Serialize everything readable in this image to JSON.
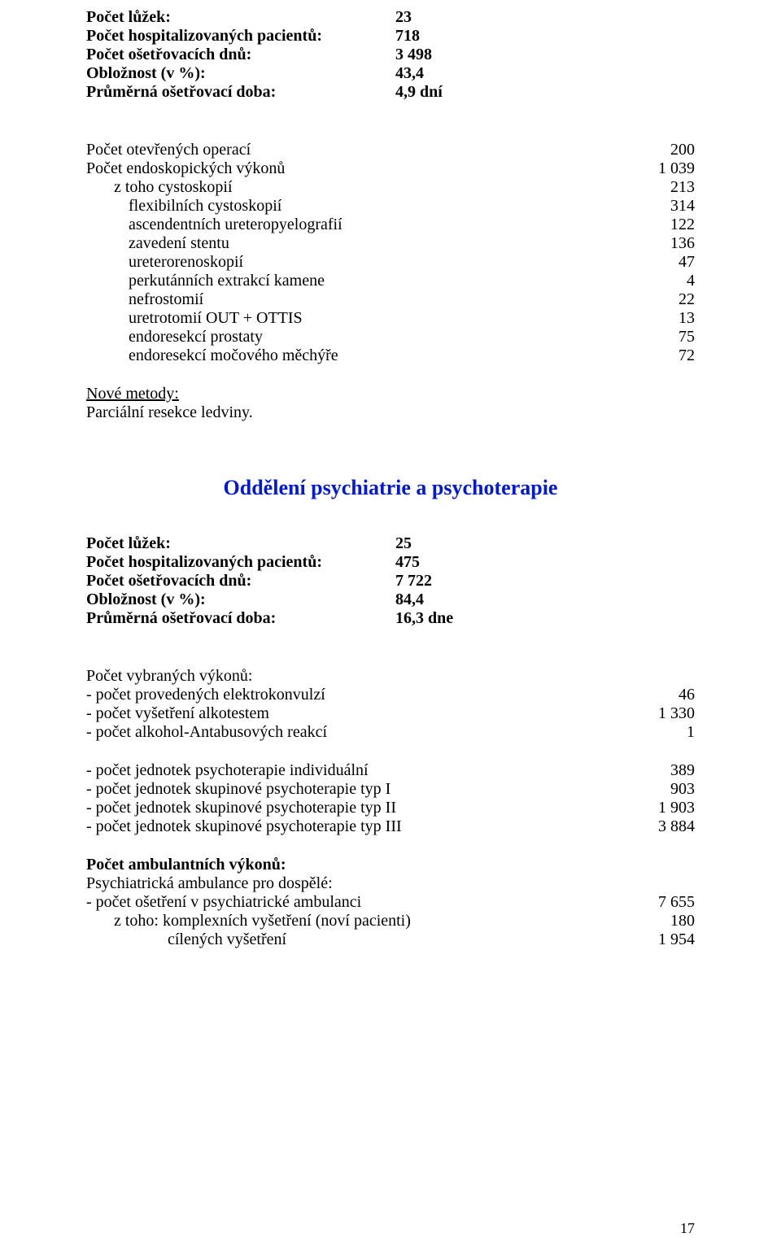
{
  "stats1": {
    "beds_label": "Počet lůžek:",
    "beds_value": "23",
    "hosp_label": "Počet hospitalizovaných pacientů:",
    "hosp_value": "718",
    "days_label": "Počet ošetřovacích dnů:",
    "days_value": "3 498",
    "occ_label": "Obložnost (v %):",
    "occ_value": "43,4",
    "avg_label": "Průměrná ošetřovací doba:",
    "avg_value": "4,9 dní"
  },
  "procs": {
    "open_label": "Počet otevřených operací",
    "open_value": "200",
    "endo_label": "Počet endoskopických  výkonů",
    "endo_value": "1 039",
    "items": [
      {
        "label": "z toho cystoskopií",
        "value": "213",
        "indent": "indent1"
      },
      {
        "label": "flexibilních cystoskopií",
        "value": "314",
        "indent": "indent2"
      },
      {
        "label": "ascendentních ureteropyelografií",
        "value": "122",
        "indent": "indent2"
      },
      {
        "label": "zavedení stentu",
        "value": "136",
        "indent": "indent2"
      },
      {
        "label": "ureterorenoskopií",
        "value": "47",
        "indent": "indent2"
      },
      {
        "label": "perkutánních extrakcí kamene",
        "value": "4",
        "indent": "indent2"
      },
      {
        "label": "nefrostomií",
        "value": "22",
        "indent": "indent2"
      },
      {
        "label": "uretrotomií OUT + OTTIS",
        "value": "13",
        "indent": "indent2"
      },
      {
        "label": "endoresekcí prostaty",
        "value": "75",
        "indent": "indent2"
      },
      {
        "label": "endoresekcí močového měchýře",
        "value": "72",
        "indent": "indent2"
      }
    ]
  },
  "methods": {
    "heading": "Nové metody:",
    "line": "Parciální resekce ledviny."
  },
  "section_title": "Oddělení psychiatrie a psychoterapie",
  "stats2": {
    "beds_label": "Počet lůžek:",
    "beds_value": "25",
    "hosp_label": "Počet hospitalizovaných pacientů:",
    "hosp_value": "475",
    "days_label": "Počet ošetřovacích dnů:",
    "days_value": "7 722",
    "occ_label": "Obložnost (v %):",
    "occ_value": "84,4",
    "avg_label": "Průměrná ošetřovací doba:",
    "avg_value": "16,3 dne"
  },
  "sel": {
    "heading": "Počet vybraných výkonů:",
    "rows": [
      {
        "label": "- počet provedených elektrokonvulzí",
        "value": "46"
      },
      {
        "label": "- počet vyšetření alkotestem",
        "value": "1 330"
      },
      {
        "label": "- počet alkohol-Antabusových reakcí",
        "value": "1"
      }
    ]
  },
  "psycho": {
    "rows": [
      {
        "label": "- počet jednotek psychoterapie individuální",
        "value": "389"
      },
      {
        "label": "- počet jednotek skupinové psychoterapie typ I",
        "value": "903"
      },
      {
        "label": "- počet jednotek skupinové psychoterapie typ II",
        "value": "1 903"
      },
      {
        "label": "- počet jednotek skupinové psychoterapie typ III",
        "value": "3 884"
      }
    ]
  },
  "amb": {
    "heading": "Počet ambulantních výkonů:",
    "sub": "Psychiatrická ambulance pro dospělé:",
    "rows": [
      {
        "label": "- počet ošetření v psychiatrické ambulanci",
        "value": "7 655",
        "indent": false
      },
      {
        "label": "z toho: komplexních vyšetření (noví pacienti)",
        "value": "180",
        "indent": "indent1"
      },
      {
        "label": "cílených vyšetření",
        "value": "1 954",
        "indent": "indent3"
      }
    ]
  },
  "pagenum": "17"
}
